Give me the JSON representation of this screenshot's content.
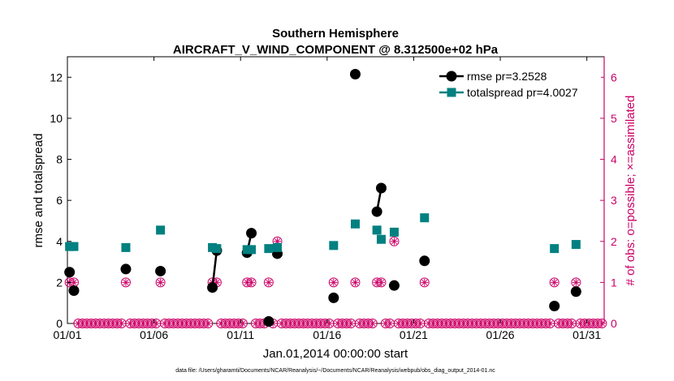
{
  "chart_data": {
    "type": "line",
    "title": "Southern Hemisphere",
    "subtitle": "AIRCRAFT_V_WIND_COMPONENT @ 8.312500e+02 hPa",
    "xlabel": "Jan.01,2014 00:00:00 start",
    "ylabel_left": "rmse and totalspread",
    "ylabel_right": "# of obs: o=possible; ×=assimilated",
    "footer": "data file: /Users/gharamti/Documents/NCAR/Reanalysis/~/Documents/NCAR/Reanalysis/webpub/obs_diag_output_2014-01.nc",
    "xlim": [
      1,
      32
    ],
    "ylim_left": [
      0,
      13
    ],
    "ylim_right": [
      0,
      6.5
    ],
    "x_ticks": [
      1,
      6,
      11,
      16,
      21,
      26,
      31
    ],
    "x_tick_labels": [
      "01/01",
      "01/06",
      "01/11",
      "01/16",
      "01/21",
      "01/26",
      "01/31"
    ],
    "y_ticks_left": [
      0,
      2,
      4,
      6,
      8,
      10,
      12
    ],
    "y_ticks_right": [
      0,
      1,
      2,
      3,
      4,
      5,
      6
    ],
    "series": [
      {
        "name": "rmse pr=3.2528",
        "color": "#000000",
        "marker": "circle",
        "points": [
          [
            1.125,
            2.5
          ],
          [
            1.375,
            1.6
          ],
          [
            4.375,
            2.65
          ],
          [
            6.375,
            2.55
          ],
          [
            9.375,
            1.75
          ],
          [
            9.625,
            3.55
          ],
          [
            11.375,
            3.45
          ],
          [
            11.625,
            4.4
          ],
          [
            12.625,
            0.1
          ],
          [
            13.125,
            3.4
          ],
          [
            16.375,
            1.25
          ],
          [
            17.625,
            12.15
          ],
          [
            18.875,
            5.45
          ],
          [
            19.125,
            6.6
          ],
          [
            19.875,
            1.85
          ],
          [
            21.625,
            3.05
          ],
          [
            29.125,
            0.85
          ],
          [
            30.375,
            1.55
          ]
        ],
        "segments": [
          [
            [
              9.375,
              1.75
            ],
            [
              9.625,
              3.55
            ]
          ],
          [
            [
              11.375,
              3.45
            ],
            [
              11.625,
              4.4
            ]
          ],
          [
            [
              18.875,
              5.45
            ],
            [
              19.125,
              6.6
            ]
          ]
        ]
      },
      {
        "name": "totalspread pr=4.0027",
        "color": "#008080",
        "marker": "square",
        "points": [
          [
            1.125,
            3.75
          ],
          [
            1.375,
            3.75
          ],
          [
            4.375,
            3.7
          ],
          [
            6.375,
            4.55
          ],
          [
            9.375,
            3.7
          ],
          [
            9.625,
            3.65
          ],
          [
            11.375,
            3.6
          ],
          [
            11.625,
            3.6
          ],
          [
            12.625,
            3.65
          ],
          [
            13.125,
            3.7
          ],
          [
            16.375,
            3.8
          ],
          [
            17.625,
            4.85
          ],
          [
            18.875,
            4.55
          ],
          [
            19.125,
            4.1
          ],
          [
            19.875,
            4.45
          ],
          [
            21.625,
            5.15
          ],
          [
            29.125,
            3.65
          ],
          [
            30.375,
            3.85
          ]
        ],
        "segments": [
          [
            [
              1.125,
              3.75
            ],
            [
              1.375,
              3.75
            ]
          ],
          [
            [
              9.375,
              3.7
            ],
            [
              9.625,
              3.65
            ]
          ],
          [
            [
              11.375,
              3.6
            ],
            [
              11.625,
              3.6
            ]
          ],
          [
            [
              12.625,
              3.65
            ],
            [
              13.125,
              3.7
            ]
          ]
        ]
      }
    ],
    "obs_counts": {
      "color": "#cc0066",
      "nonzero": [
        [
          1.125,
          1
        ],
        [
          1.375,
          1
        ],
        [
          4.375,
          1
        ],
        [
          6.375,
          1
        ],
        [
          9.375,
          1
        ],
        [
          9.625,
          1
        ],
        [
          11.375,
          1
        ],
        [
          11.625,
          1
        ],
        [
          12.625,
          1
        ],
        [
          13.125,
          2
        ],
        [
          16.375,
          1
        ],
        [
          17.625,
          1
        ],
        [
          18.875,
          1
        ],
        [
          19.125,
          1
        ],
        [
          19.875,
          2
        ],
        [
          21.625,
          1
        ],
        [
          29.125,
          1
        ],
        [
          30.375,
          1
        ]
      ],
      "zero_start": 1.125,
      "zero_step": 0.25,
      "zero_end": 32
    },
    "legend": [
      "rmse pr=3.2528",
      "totalspread pr=4.0027"
    ],
    "legend_position": "top-right",
    "grid": false
  }
}
